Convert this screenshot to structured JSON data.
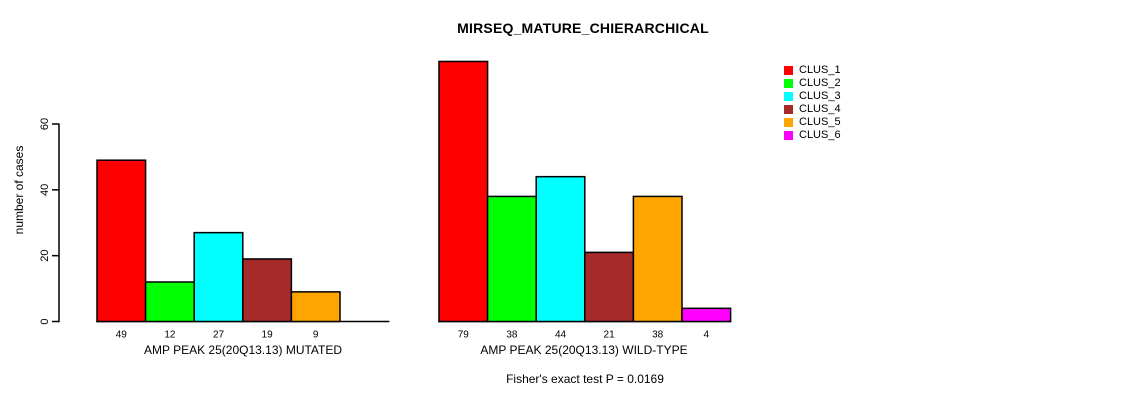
{
  "chart_data": {
    "type": "bar",
    "title": "MIRSEQ_MATURE_CHIERARCHICAL",
    "ylabel": "number of cases",
    "annotation": "Fisher's exact test P = 0.0169",
    "yticks": [
      0,
      20,
      40,
      60
    ],
    "ylim": [
      0,
      80
    ],
    "grid": false,
    "legend_position": "top-right",
    "legend": [
      {
        "label": "CLUS_1",
        "color": "#ff0000"
      },
      {
        "label": "CLUS_2",
        "color": "#00ff00"
      },
      {
        "label": "CLUS_3",
        "color": "#00ffff"
      },
      {
        "label": "CLUS_4",
        "color": "#a52a2a"
      },
      {
        "label": "CLUS_5",
        "color": "#ffa500"
      },
      {
        "label": "CLUS_6",
        "color": "#ff00ff"
      }
    ],
    "groups": [
      {
        "label": "AMP PEAK 25(20Q13.13) MUTATED",
        "values": [
          49,
          12,
          27,
          19,
          9,
          0
        ],
        "bar_labels": [
          "49",
          "12",
          "27",
          "19",
          "9",
          ""
        ]
      },
      {
        "label": "AMP PEAK 25(20Q13.13) WILD-TYPE",
        "values": [
          79,
          38,
          44,
          21,
          38,
          4
        ],
        "bar_labels": [
          "79",
          "38",
          "44",
          "21",
          "38",
          "4"
        ]
      }
    ]
  }
}
